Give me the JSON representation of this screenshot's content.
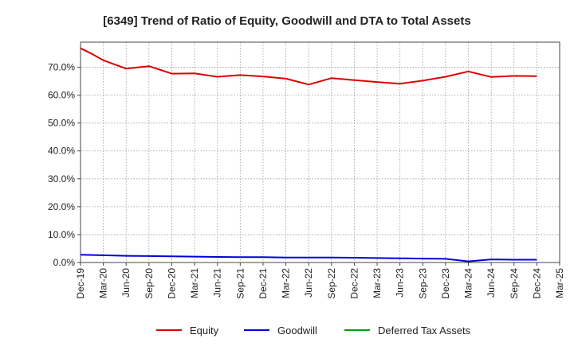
{
  "chart_data": {
    "type": "line",
    "title": "[6349]  Trend of Ratio of Equity, Goodwill and DTA to Total Assets",
    "xlabel": "",
    "ylabel": "",
    "ylim": [
      0,
      0.79
    ],
    "y_ticks": [
      0,
      0.1,
      0.2,
      0.3,
      0.4,
      0.5,
      0.6,
      0.7
    ],
    "y_tick_labels": [
      "0.0%",
      "10.0%",
      "20.0%",
      "30.0%",
      "40.0%",
      "50.0%",
      "60.0%",
      "70.0%"
    ],
    "x_tick_labels": [
      "Dec-19",
      "Mar-20",
      "Jun-20",
      "Sep-20",
      "Dec-20",
      "Mar-21",
      "Jun-21",
      "Sep-21",
      "Dec-21",
      "Mar-22",
      "Jun-22",
      "Sep-22",
      "Dec-22",
      "Mar-23",
      "Jun-23",
      "Sep-23",
      "Dec-23",
      "Mar-24",
      "Jun-24",
      "Sep-24",
      "Dec-24",
      "Mar-25"
    ],
    "x_quarter_range": [
      0,
      21
    ],
    "grid": true,
    "legend_position": "bottom",
    "series": [
      {
        "name": "Equity",
        "color": "#dd0000",
        "x": [
          0,
          0.5,
          1,
          2,
          3,
          4,
          5,
          6,
          7,
          8,
          9,
          10,
          11,
          12,
          13,
          14,
          15,
          16,
          17,
          18,
          19,
          20
        ],
        "values": [
          0.768,
          0.748,
          0.725,
          0.695,
          0.704,
          0.677,
          0.678,
          0.666,
          0.672,
          0.667,
          0.659,
          0.638,
          0.661,
          0.654,
          0.647,
          0.641,
          0.652,
          0.666,
          0.685,
          0.665,
          0.669,
          0.668
        ]
      },
      {
        "name": "Goodwill",
        "color": "#0000dd",
        "x": [
          0,
          1,
          2,
          3,
          4,
          5,
          6,
          7,
          8,
          9,
          10,
          11,
          12,
          13,
          14,
          15,
          16,
          17,
          18,
          19,
          20
        ],
        "values": [
          0.028,
          0.026,
          0.024,
          0.023,
          0.022,
          0.021,
          0.02,
          0.019,
          0.019,
          0.018,
          0.018,
          0.018,
          0.017,
          0.016,
          0.015,
          0.014,
          0.013,
          0.004,
          0.011,
          0.01,
          0.01
        ]
      },
      {
        "name": "Deferred Tax Assets",
        "color": "#00a000",
        "x": [],
        "values": []
      }
    ]
  }
}
